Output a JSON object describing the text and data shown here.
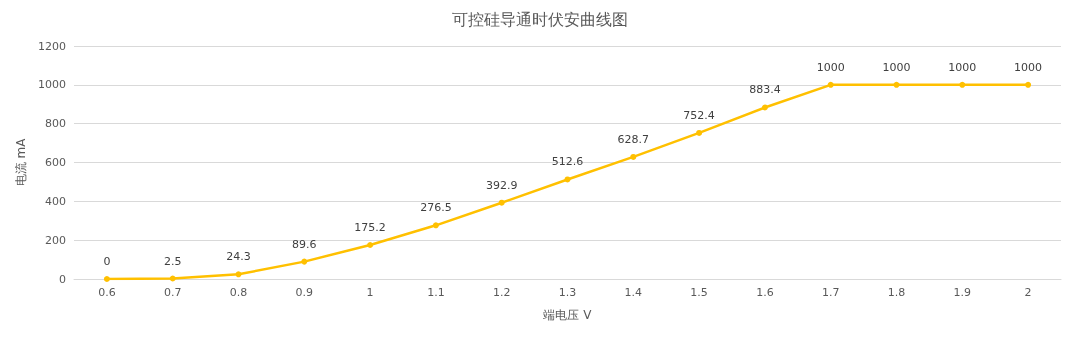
{
  "chart_data": {
    "type": "line",
    "title": "可控硅导通时伏安曲线图",
    "xlabel": "端电压 V",
    "ylabel": "电流 mA",
    "categories": [
      "0.6",
      "0.7",
      "0.8",
      "0.9",
      "1",
      "1.1",
      "1.2",
      "1.3",
      "1.4",
      "1.5",
      "1.6",
      "1.7",
      "1.8",
      "1.9",
      "2"
    ],
    "series": [
      {
        "color": "#ffc000",
        "values": [
          0,
          2.5,
          24.3,
          89.6,
          175.2,
          276.5,
          392.9,
          512.6,
          628.7,
          752.4,
          883.4,
          1000,
          1000,
          1000,
          1000
        ]
      }
    ],
    "ylim": [
      0,
      1200
    ],
    "yticks": [
      0,
      200,
      400,
      600,
      800,
      1000,
      1200
    ],
    "grid": "y",
    "marker": "circle",
    "line_style": "solid",
    "data_labels": true
  }
}
